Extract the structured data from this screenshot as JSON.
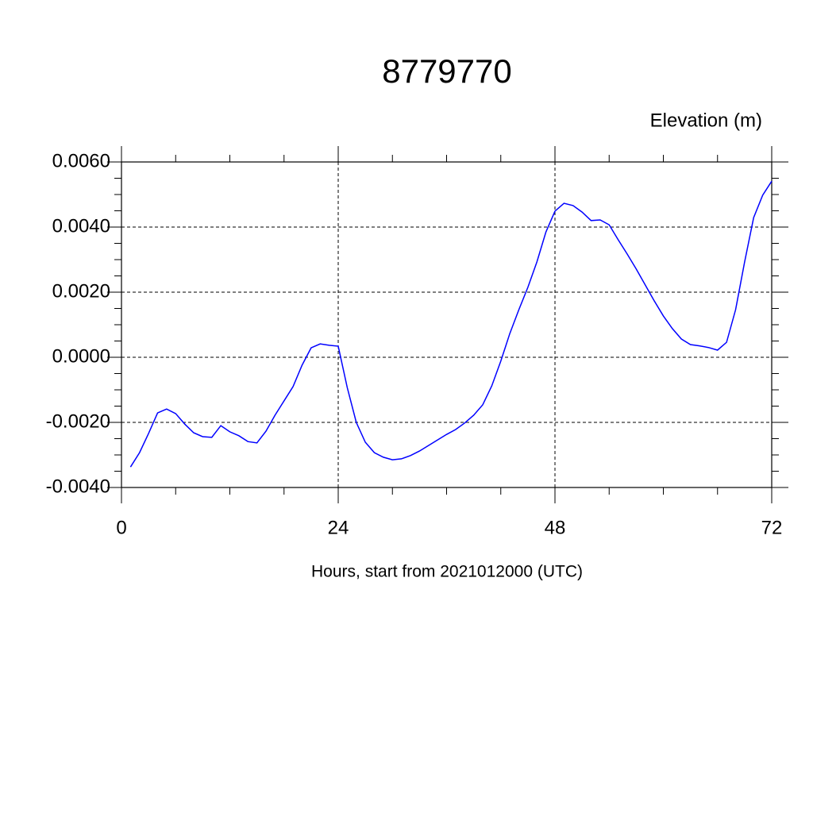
{
  "chart_data": {
    "type": "line",
    "title": "8779770",
    "subtitle": "Elevation (m)",
    "x_label": "Hours, start from 2021012000 (UTC)",
    "x": [
      1,
      2,
      3,
      4,
      5,
      6,
      7,
      8,
      9,
      10,
      11,
      12,
      13,
      14,
      15,
      16,
      17,
      18,
      19,
      20,
      21,
      22,
      23,
      24,
      25,
      26,
      27,
      28,
      29,
      30,
      31,
      32,
      33,
      34,
      35,
      36,
      37,
      38,
      39,
      40,
      41,
      42,
      43,
      44,
      45,
      46,
      47,
      48,
      49,
      50,
      51,
      52,
      53,
      54,
      55,
      56,
      57,
      58,
      59,
      60,
      61,
      62,
      63,
      64,
      65,
      66,
      67,
      68,
      69,
      70,
      71,
      72
    ],
    "series": [
      {
        "name": "Elevation",
        "color": "#0000ff",
        "values": [
          -0.00337,
          -0.00293,
          -0.00234,
          -0.00171,
          -0.00159,
          -0.00173,
          -0.00205,
          -0.00232,
          -0.00244,
          -0.00246,
          -0.0021,
          -0.00229,
          -0.00241,
          -0.00259,
          -0.00263,
          -0.00227,
          -0.00178,
          -0.00134,
          -0.0009,
          -0.00024,
          0.00029,
          0.00041,
          0.00037,
          0.00034,
          -0.00093,
          -0.002,
          -0.00261,
          -0.00293,
          -0.00307,
          -0.00315,
          -0.00312,
          -0.00302,
          -0.00288,
          -0.00271,
          -0.00254,
          -0.00237,
          -0.00222,
          -0.00202,
          -0.00178,
          -0.00146,
          -0.00088,
          -0.00012,
          0.00073,
          0.00146,
          0.00215,
          0.00293,
          0.00385,
          0.00449,
          0.00473,
          0.00466,
          0.00446,
          0.0042,
          0.00422,
          0.00407,
          0.00361,
          0.00317,
          0.00271,
          0.00222,
          0.00173,
          0.00127,
          0.00088,
          0.00056,
          0.00039,
          0.00035,
          0.0003,
          0.00022,
          0.00046,
          0.00146,
          0.00293,
          0.00429,
          0.00498,
          0.00541
        ]
      }
    ],
    "xlim": [
      0,
      72
    ],
    "xticks": [
      0,
      24,
      48,
      72
    ],
    "ylim": [
      -0.004,
      0.006
    ],
    "yticks": [
      {
        "value": -0.004,
        "label": "-0.0040"
      },
      {
        "value": -0.002,
        "label": "-0.0020"
      },
      {
        "value": 0,
        "label": "0.0000"
      },
      {
        "value": 0.002,
        "label": "0.0020"
      },
      {
        "value": 0.004,
        "label": "0.0040"
      },
      {
        "value": 0.006,
        "label": "0.0060"
      }
    ],
    "grid": true
  }
}
